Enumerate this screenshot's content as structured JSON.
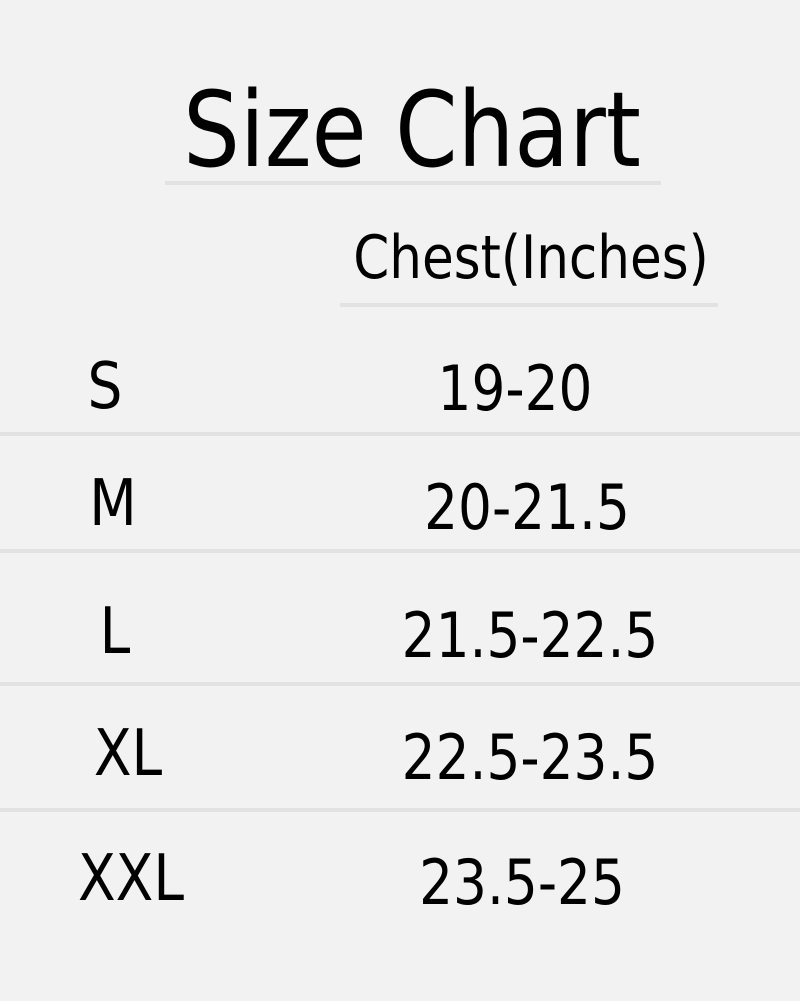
{
  "title": "Size Chart",
  "column_header": "Chest(Inches)",
  "rows": [
    {
      "size": "S",
      "chest": "19-20"
    },
    {
      "size": "M",
      "chest": "20-21.5"
    },
    {
      "size": "L",
      "chest": "21.5-22.5"
    },
    {
      "size": "XL",
      "chest": "22.5-23.5"
    },
    {
      "size": "XXL",
      "chest": "23.5-25"
    }
  ],
  "colors": {
    "background": "#f2f2f2",
    "divider": "#e2e2e2",
    "text": "#000000"
  }
}
